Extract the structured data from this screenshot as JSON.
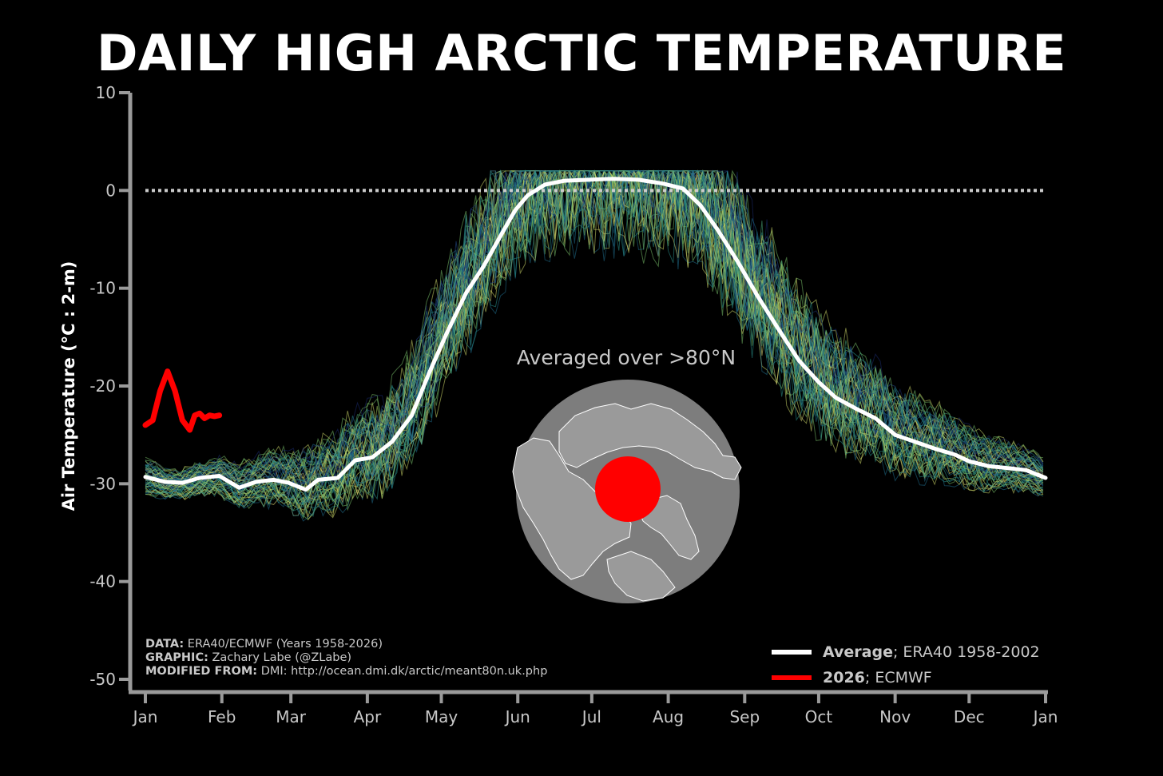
{
  "title": "DAILY HIGH ARCTIC TEMPERATURE",
  "chart_data": {
    "type": "line",
    "title": "DAILY HIGH ARCTIC TEMPERATURE",
    "ylabel": "Air Temperature (°C : 2-m)",
    "xlabel": "",
    "ylim": [
      -50,
      10
    ],
    "yticks": [
      "10",
      "0",
      "-10",
      "-20",
      "-30",
      "-40",
      "-50"
    ],
    "ytick_values": [
      10,
      0,
      -10,
      -20,
      -30,
      -40,
      -50
    ],
    "xlim_days": [
      0,
      365
    ],
    "xticks": [
      "Jan",
      "Feb",
      "Mar",
      "Apr",
      "May",
      "Jun",
      "Jul",
      "Aug",
      "Sep",
      "Oct",
      "Nov",
      "Dec",
      "Jan"
    ],
    "xtick_days": [
      0,
      31,
      59,
      90,
      120,
      151,
      181,
      212,
      243,
      273,
      304,
      334,
      365
    ],
    "reference_line": {
      "y": 0,
      "style": "dotted",
      "color": "#cccccc"
    },
    "series": [
      {
        "name": "Average",
        "color": "#ffffff",
        "x": [
          0,
          8,
          15,
          22,
          30,
          38,
          45,
          52,
          58,
          65,
          70,
          78,
          85,
          92,
          100,
          108,
          115,
          122,
          130,
          137,
          145,
          150,
          155,
          162,
          170,
          180,
          190,
          200,
          210,
          218,
          225,
          232,
          240,
          248,
          256,
          265,
          273,
          280,
          288,
          296,
          304,
          312,
          320,
          328,
          334,
          342,
          350,
          357,
          365
        ],
        "y": [
          -29.3,
          -29.8,
          -29.9,
          -29.4,
          -29.2,
          -30.4,
          -29.8,
          -29.6,
          -29.9,
          -30.6,
          -29.6,
          -29.4,
          -27.6,
          -27.3,
          -25.7,
          -23.0,
          -18.7,
          -14.7,
          -10.5,
          -7.8,
          -4.2,
          -2.0,
          -0.5,
          0.6,
          1.0,
          1.1,
          1.2,
          1.1,
          0.7,
          0.2,
          -1.5,
          -4.0,
          -7.2,
          -10.7,
          -13.9,
          -17.4,
          -19.6,
          -21.2,
          -22.3,
          -23.3,
          -25.0,
          -25.7,
          -26.4,
          -27.0,
          -27.7,
          -28.2,
          -28.4,
          -28.6,
          -29.4
        ]
      },
      {
        "name": "2026",
        "color": "#ff0000",
        "x": [
          0,
          3,
          6,
          9,
          12,
          15,
          18,
          20,
          22,
          24,
          26,
          28,
          30
        ],
        "y": [
          -24.0,
          -23.5,
          -20.5,
          -18.5,
          -20.5,
          -23.5,
          -24.5,
          -23.0,
          -22.8,
          -23.3,
          -23.0,
          -23.1,
          -23.0
        ]
      }
    ],
    "ensemble": {
      "years": "1958-2026",
      "colors": [
        "#1a2a6c",
        "#254a8a",
        "#1f6e8c",
        "#2a8f8a",
        "#4aa87a",
        "#79bf6a",
        "#a8cf62",
        "#cdd86a",
        "#e6e27a"
      ]
    },
    "legend": {
      "placement": "bottom-right",
      "entries": [
        {
          "bold": "Average",
          "rest": "; ERA40 1958-2002",
          "color": "#ffffff"
        },
        {
          "bold": "2026",
          "rest": "; ECMWF",
          "color": "#ff0000"
        }
      ]
    },
    "inset": {
      "label": "Averaged over >80°N",
      "map_color": "#7d7d7d",
      "highlight_color": "#ff0000"
    }
  },
  "credits": [
    {
      "label": "DATA:",
      "text": " ERA40/ECMWF (Years 1958-2026)"
    },
    {
      "label": "GRAPHIC:",
      "text": " Zachary Labe (@ZLabe)"
    },
    {
      "label": "MODIFIED FROM:",
      "text": " DMI: http://ocean.dmi.dk/arctic/meant80n.uk.php"
    }
  ]
}
